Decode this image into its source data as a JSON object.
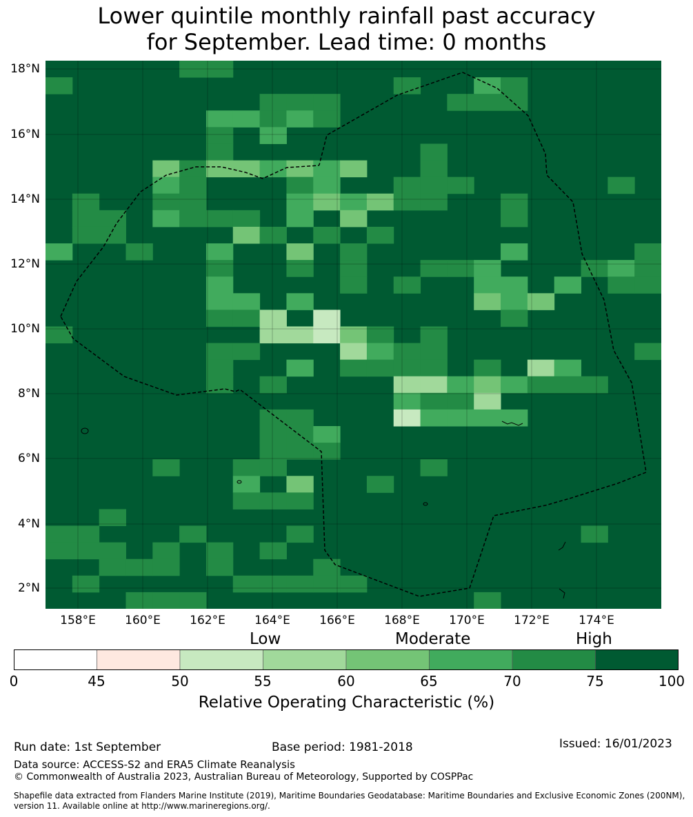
{
  "title": {
    "line1": "Lower quintile monthly rainfall past accuracy",
    "line2": "for September. Lead time: 0 months"
  },
  "map": {
    "lat_labels": [
      "18°N",
      "16°N",
      "14°N",
      "12°N",
      "10°N",
      "8°N",
      "6°N",
      "4°N",
      "2°N"
    ],
    "lon_labels": [
      "158°E",
      "160°E",
      "162°E",
      "164°E",
      "166°E",
      "168°E",
      "170°E",
      "172°E",
      "174°E"
    ],
    "cell_colors": {
      "c1": "#c7e9c0",
      "c2": "#a1d99b",
      "c3": "#74c476",
      "c4": "#41ab5d",
      "c5": "#238b45",
      "c6": "#005a32"
    },
    "boundary_style": "dashed",
    "grid": true
  },
  "colorbar": {
    "categories": [
      "Low",
      "Moderate",
      "High"
    ],
    "ticks": [
      "0",
      "45",
      "50",
      "55",
      "60",
      "65",
      "70",
      "75",
      "100"
    ],
    "colors": [
      "#ffffff",
      "#fee8e0",
      "#c7e9c0",
      "#a1d99b",
      "#74c476",
      "#41ab5d",
      "#238b45",
      "#005a32"
    ],
    "label": "Relative Operating Characteristic (%)"
  },
  "footer": {
    "run_date": "Run date: 1st September",
    "base_period": "Base period: 1981-2018",
    "issued": "Issued: 16/01/2023",
    "data_source": "Data source: ACCESS-S2 and ERA5 Climate Reanalysis",
    "copyright": "© Commonwealth of Australia 2023, Australian Bureau of Meteorology, Supported by COSPPac",
    "shapefile_line1": "Shapefile data extracted from Flanders Marine Institute (2019), Maritime Boundaries Geodatabase: Maritime Boundaries and Exclusive Economic Zones (200NM),",
    "shapefile_line2": "version 11. Available online at http://www.marineregions.org/."
  }
}
